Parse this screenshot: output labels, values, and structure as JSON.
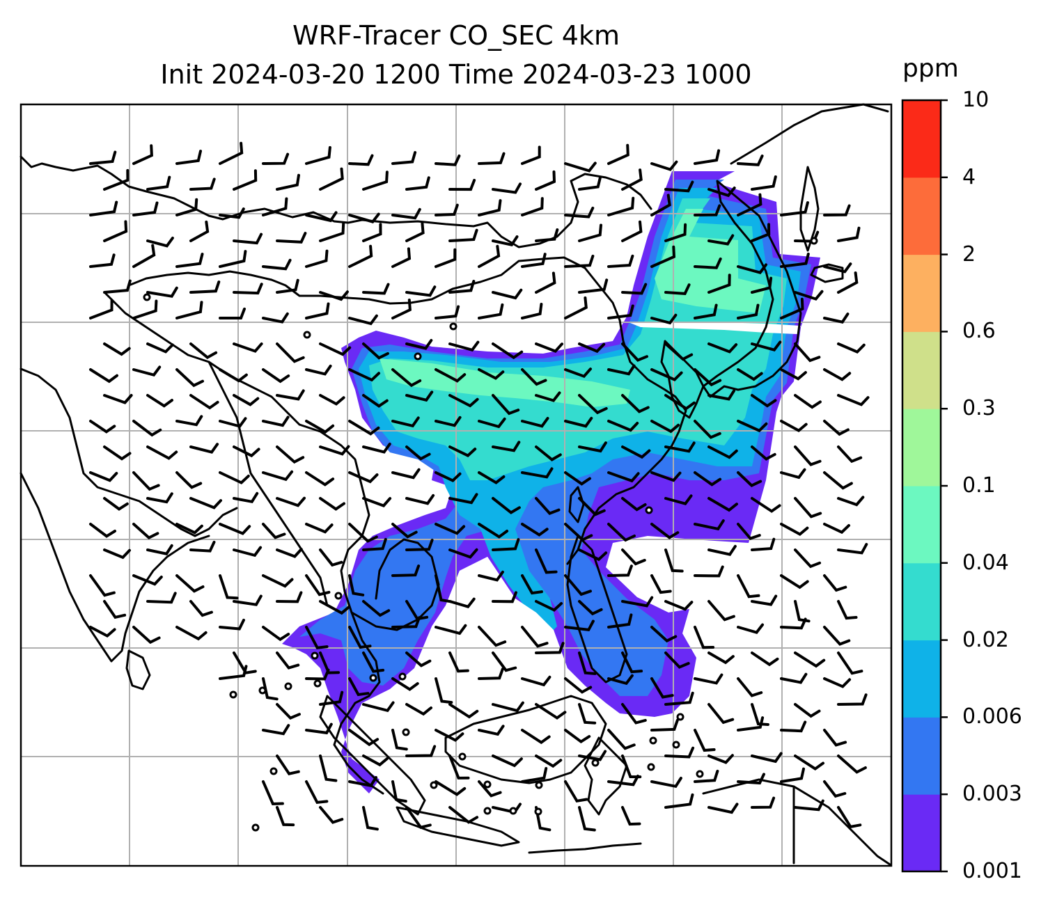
{
  "title": {
    "line1": "WRF-Tracer CO_SEC 4km",
    "line2": "Init 2024-03-20 1200 Time 2024-03-23 1000"
  },
  "colorbar": {
    "unit": "ppm",
    "ticks": [
      "10",
      "4",
      "2",
      "0.6",
      "0.3",
      "0.1",
      "0.04",
      "0.02",
      "0.006",
      "0.003",
      "0.001"
    ],
    "colors": [
      "#6a2af5",
      "#3377f2",
      "#0fb2e8",
      "#34dccf",
      "#6cf8c0",
      "#9ff79a",
      "#cfe08a",
      "#fdb060",
      "#fd6c3a",
      "#fb2a18"
    ]
  },
  "map": {
    "background": "#ffffff",
    "gridlines": "on",
    "coastline_color": "#000000",
    "gridline_color": "#b0b0b0"
  }
}
